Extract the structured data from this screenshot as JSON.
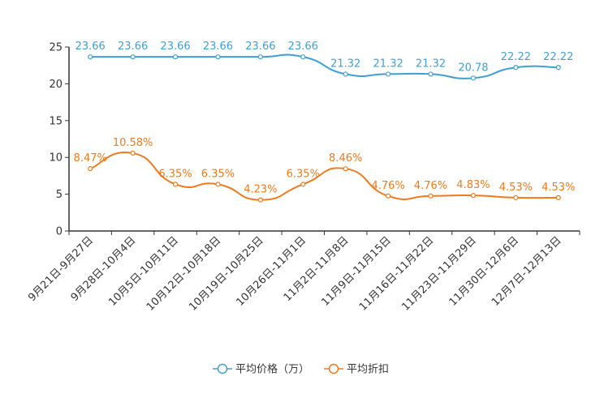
{
  "chart_data": {
    "type": "line",
    "title": "",
    "xlabel": "",
    "ylabel": "",
    "ylim": [
      0,
      25
    ],
    "yticks": [
      0,
      5,
      10,
      15,
      20,
      25
    ],
    "grid": false,
    "legend_position": "bottom",
    "categories": [
      "9月21日-9月27日",
      "9月28日-10月4日",
      "10月5日-10月11日",
      "10月12日-10月18日",
      "10月19日-10月25日",
      "10月26日-11月1日",
      "11月2日-11月8日",
      "11月9日-11月15日",
      "11月16日-11月22日",
      "11月23日-11月29日",
      "11月30日-12月6日",
      "12月7日-12月13日"
    ],
    "series": [
      {
        "name": "平均价格（万）",
        "color": "#3fa0d0",
        "values": [
          23.66,
          23.66,
          23.66,
          23.66,
          23.66,
          23.66,
          21.32,
          21.32,
          21.32,
          20.78,
          22.22,
          22.22
        ],
        "labels": [
          "23.66",
          "23.66",
          "23.66",
          "23.66",
          "23.66",
          "23.66",
          "21.32",
          "21.32",
          "21.32",
          "20.78",
          "22.22",
          "22.22"
        ]
      },
      {
        "name": "平均折扣",
        "color": "#f07a1c",
        "values": [
          8.47,
          10.58,
          6.35,
          6.35,
          4.23,
          6.35,
          8.46,
          4.76,
          4.76,
          4.83,
          4.53,
          4.53
        ],
        "labels": [
          "8.47%",
          "10.58%",
          "6.35%",
          "6.35%",
          "4.23%",
          "6.35%",
          "8.46%",
          "4.76%",
          "4.76%",
          "4.83%",
          "4.53%",
          "4.53%"
        ]
      }
    ]
  }
}
